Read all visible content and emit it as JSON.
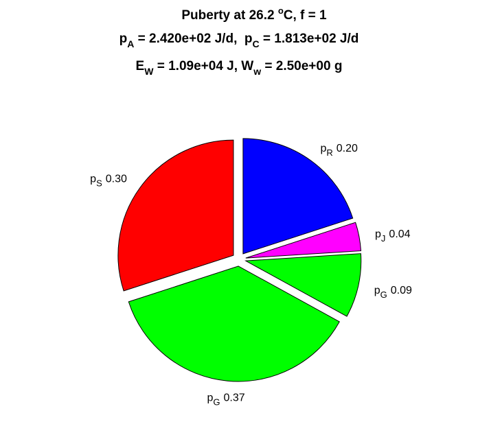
{
  "chart_data": {
    "type": "pie",
    "title": [
      [
        "Puberty at 26.2 ",
        "o",
        "C, f = 1"
      ],
      [
        "p",
        "A",
        " = 2.420e+02 J/d,  p",
        "C",
        " = 1.813e+02 J/d"
      ],
      [
        "E",
        "W",
        " = 1.09e+04 J, W",
        "w",
        " = 2.50e+00 g"
      ]
    ],
    "categories": [
      [
        "p",
        "R"
      ],
      [
        "p",
        "J"
      ],
      [
        "p",
        "G"
      ],
      [
        "p",
        "G"
      ],
      [
        "p",
        "S"
      ]
    ],
    "values": [
      0.2,
      0.04,
      0.09,
      0.37,
      0.3
    ],
    "value_labels": [
      "0.20",
      "0.04",
      "0.09",
      "0.37",
      "0.30"
    ],
    "colors": [
      "#0000ff",
      "#ff00ff",
      "#00ff00",
      "#00ff00",
      "#ff0000"
    ]
  }
}
